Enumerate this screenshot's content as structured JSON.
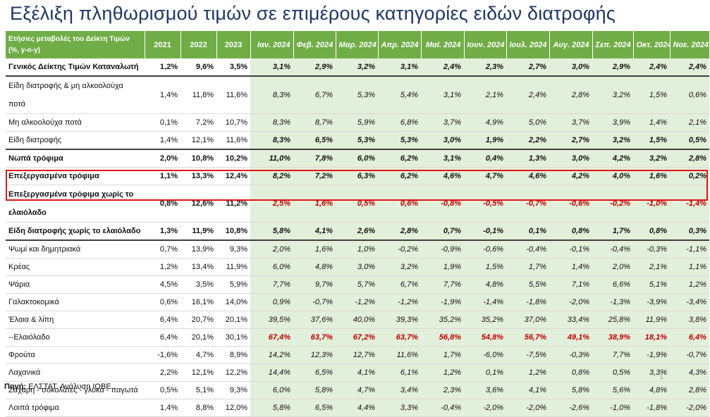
{
  "title": "Εξέλιξη πληθωρισμού τιμών σε επιμέρους κατηγορίες ειδών διατροφής",
  "header": {
    "first": "Ετήσιες μεταβολές του Δείκτη Τιμών (%, y-o-y)",
    "columns": [
      "2021",
      "2022",
      "2023",
      "Ιαν. 2024",
      "Φεβ. 2024",
      "Μαρ. 2024",
      "Απρ. 2024",
      "Μαϊ. 2024",
      "Ιουν. 2024",
      "Ιουλ. 2024",
      "Αυγ. 2024",
      "Σεπ. 2024",
      "Οκτ. 2024",
      "Νοε. 2024"
    ]
  },
  "rows": [
    {
      "label": "Γενικός Δείκτης Τιμών Καταναλωτή",
      "values": [
        "1,2%",
        "9,6%",
        "3,5%",
        "3,1%",
        "2,9%",
        "3,2%",
        "3,1%",
        "2,4%",
        "2,3%",
        "2,7%",
        "3,0%",
        "2,9%",
        "2,4%",
        "2,4%"
      ],
      "bold": true,
      "thick": true
    },
    {
      "label": "Είδη διατροφής & μη αλκοολούχα ποτά",
      "values": [
        "1,4%",
        "11,8%",
        "11,6%",
        "8,3%",
        "6,7%",
        "5,3%",
        "5,4%",
        "3,1%",
        "2,1%",
        "2,4%",
        "2,8%",
        "3,2%",
        "1,5%",
        "0,6%"
      ],
      "tall": true
    },
    {
      "label": "Μη αλκοολούχα ποτά",
      "values": [
        "0,1%",
        "7,2%",
        "10,7%",
        "8,3%",
        "8,7%",
        "5,9%",
        "6,8%",
        "3,7%",
        "4,9%",
        "5,0%",
        "3,7%",
        "3,9%",
        "1,4%",
        "2,1%"
      ]
    },
    {
      "label": "Είδη διατροφής",
      "values": [
        "1,4%",
        "12,1%",
        "11,6%",
        "8,3%",
        "6,5%",
        "5,3%",
        "5,3%",
        "3,0%",
        "1,9%",
        "2,2%",
        "2,7%",
        "3,2%",
        "1,5%",
        "0,5%"
      ],
      "thick": true,
      "boldMonths": true
    },
    {
      "label": "Νωπά τρόφιμα",
      "values": [
        "2,0%",
        "10,8%",
        "10,2%",
        "11,0%",
        "7,8%",
        "6,0%",
        "6,2%",
        "3,1%",
        "0,4%",
        "1,3%",
        "3,0%",
        "4,2%",
        "3,2%",
        "2,8%"
      ],
      "bold": true
    },
    {
      "label": "Επεξεργασμένα τρόφιμα",
      "values": [
        "1,1%",
        "13,3%",
        "12,4%",
        "8,2%",
        "7,2%",
        "6,3%",
        "6,2%",
        "4,6%",
        "4,7%",
        "4,6%",
        "4,2%",
        "4,0%",
        "1,6%",
        "0,2%"
      ],
      "bold": true
    },
    {
      "label": "Επεξεργασμένα τρόφιμα χωρίς το ελαιόλαδο",
      "values": [
        "0,8%",
        "12,6%",
        "11,2%",
        "2,5%",
        "1,6%",
        "0,5%",
        "0,6%",
        "-0,8%",
        "-0,5%",
        "-0,7%",
        "-0,6%",
        "-0,2%",
        "-1,0%",
        "-1,4%"
      ],
      "bold": true,
      "tall": true,
      "redMonths": true
    },
    {
      "label": "Είδη διατροφής χωρίς το ελαιόλαδο",
      "values": [
        "1,3%",
        "11,9%",
        "10,8%",
        "5,8%",
        "4,1%",
        "2,6%",
        "2,8%",
        "0,7%",
        "-0,1%",
        "0,1%",
        "0,8%",
        "1,7%",
        "0,8%",
        "0,3%"
      ],
      "bold": true,
      "thick": true
    },
    {
      "label": "Ψωμί και δημητριακά",
      "values": [
        "0,7%",
        "13,9%",
        "9,3%",
        "2,0%",
        "1,6%",
        "1,0%",
        "-0,2%",
        "-0,9%",
        "-0,6%",
        "-0,4%",
        "-0,1%",
        "-0,4%",
        "-0,3%",
        "-1,1%"
      ]
    },
    {
      "label": "Κρέας",
      "values": [
        "1,2%",
        "13,4%",
        "11,9%",
        "6,0%",
        "4,8%",
        "3,0%",
        "3,2%",
        "1,9%",
        "1,5%",
        "1,7%",
        "1,4%",
        "2,0%",
        "2,1%",
        "1,1%"
      ]
    },
    {
      "label": "Ψάρια",
      "values": [
        "4,5%",
        "3,5%",
        "5,9%",
        "7,7%",
        "9,7%",
        "5,7%",
        "6,7%",
        "7,7%",
        "4,8%",
        "5,5%",
        "7,1%",
        "6,6%",
        "5,1%",
        "1,2%"
      ]
    },
    {
      "label": "Γαλακτοκομικά",
      "values": [
        "0,6%",
        "16,1%",
        "14,0%",
        "0,9%",
        "-0,7%",
        "-1,2%",
        "-1,2%",
        "-1,9%",
        "-1,4%",
        "-1,8%",
        "-2,0%",
        "-1,3%",
        "-3,9%",
        "-3,4%"
      ]
    },
    {
      "label": "Έλαια & λίπη",
      "values": [
        "6,4%",
        "20,7%",
        "20,1%",
        "39,5%",
        "37,6%",
        "40,0%",
        "39,3%",
        "35,2%",
        "35,2%",
        "37,0%",
        "33,4%",
        "25,8%",
        "11,9%",
        "3,8%"
      ]
    },
    {
      "label": "--Ελαιόλαδο",
      "values": [
        "6,4%",
        "20,1%",
        "30,1%",
        "67,4%",
        "63,7%",
        "67,2%",
        "63,7%",
        "56,8%",
        "54,8%",
        "56,7%",
        "49,1%",
        "38,9%",
        "18,1%",
        "6,4%"
      ],
      "redBoldMonths": true
    },
    {
      "label": "Φρούτα",
      "values": [
        "-1,6%",
        "4,7%",
        "8,9%",
        "14,2%",
        "12,3%",
        "12,7%",
        "11,6%",
        "1,7%",
        "-6,0%",
        "-7,5%",
        "-0,3%",
        "7,7%",
        "-1,9%",
        "-0,7%"
      ]
    },
    {
      "label": "Λαχανικά",
      "values": [
        "2,2%",
        "12,1%",
        "12,2%",
        "14,4%",
        "6,5%",
        "4,1%",
        "6,1%",
        "1,2%",
        "0,1%",
        "1,2%",
        "0,8%",
        "0,5%",
        "3,3%",
        "4,3%"
      ]
    },
    {
      "label": "Ζάχαρη - σοκολάτες - γλυκά - παγωτά",
      "values": [
        "0,5%",
        "5,1%",
        "9,3%",
        "6,0%",
        "5,8%",
        "4,7%",
        "3,4%",
        "2,3%",
        "3,6%",
        "4,1%",
        "5,8%",
        "5,6%",
        "4,8%",
        "2,8%"
      ]
    },
    {
      "label": "Λοιπά τρόφιμα",
      "values": [
        "1,4%",
        "8,8%",
        "12,0%",
        "5,8%",
        "6,5%",
        "4,4%",
        "3,3%",
        "-0,4%",
        "-2,0%",
        "-2,0%",
        "-2,6%",
        "-1,0%",
        "-1,8%",
        "-2,0%"
      ]
    }
  ],
  "source": {
    "label": "Πηγή:",
    "text": " ΕΛΣΤΑΤ. Ανάλυση ΙΟΒΕ"
  },
  "page_number": "1"
}
